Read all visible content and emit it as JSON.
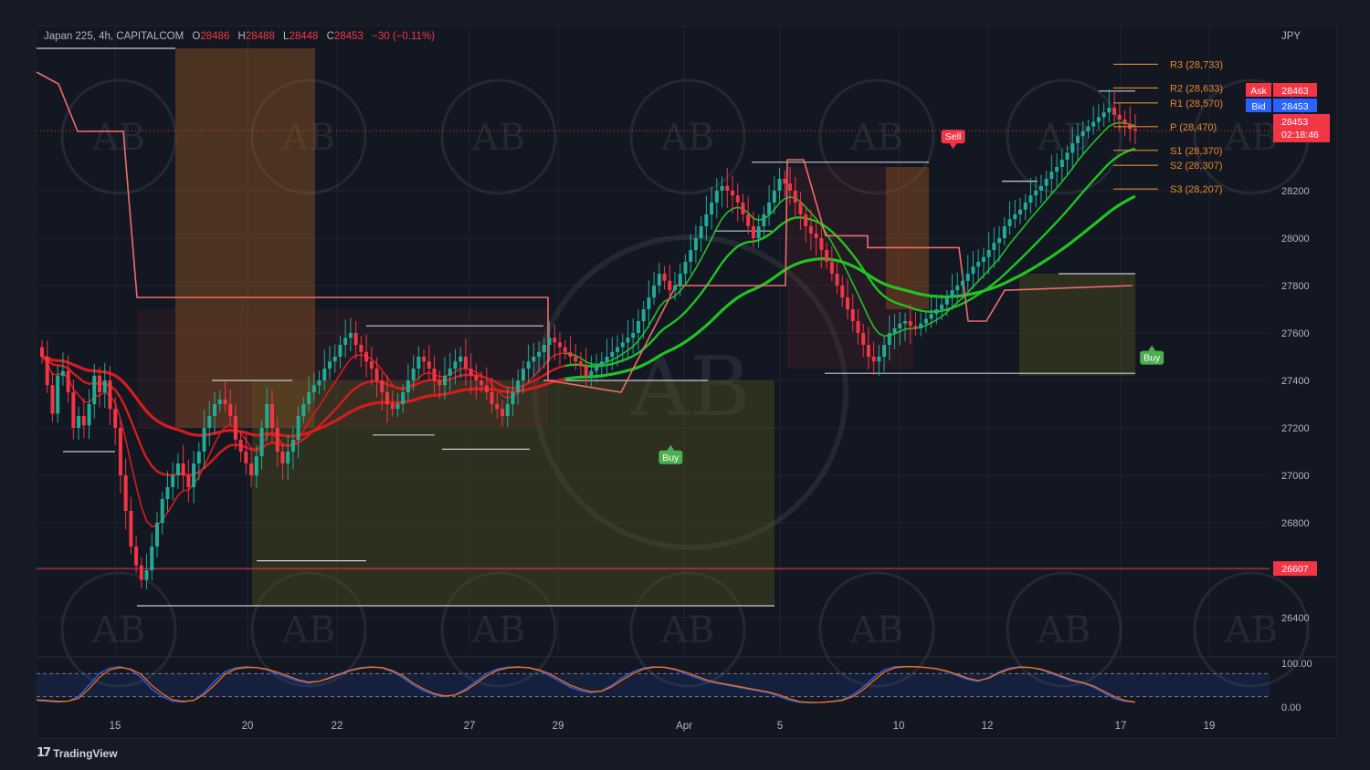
{
  "header": {
    "symbol": "Japan 225, 4h, CAPITALCOM",
    "open_label": "O",
    "open": "28486",
    "high_label": "H",
    "high": "28488",
    "low_label": "L",
    "low": "28448",
    "close_label": "C",
    "close": "28453",
    "change": "−30 (−0.11%)"
  },
  "currency": "JPY",
  "branding": {
    "logo_text": "TradingView"
  },
  "watermark_text": "AB",
  "colors": {
    "bull": "#22ab94",
    "bear": "#f23645",
    "pivot": "#e58a2a",
    "ema_green": "#21c323",
    "ema_red": "#d61c1c",
    "ask": "#f23645",
    "bid": "#2962ff"
  },
  "chart_data": {
    "type": "candlestick",
    "instrument": "Japan 225",
    "timeframe": "4h",
    "y_axis": {
      "ticks": [
        26400,
        26600,
        26800,
        27000,
        27200,
        27400,
        27600,
        27800,
        28000,
        28200
      ],
      "range": [
        26250,
        28850
      ]
    },
    "x_axis": {
      "ticks": [
        "15",
        "20",
        "22",
        "27",
        "29",
        "Apr",
        "5",
        "10",
        "12",
        "17",
        "19"
      ]
    },
    "pivots": [
      {
        "name": "R3",
        "label": "R3 (28,733)",
        "value": 28733
      },
      {
        "name": "R2",
        "label": "R2 (28,633)",
        "value": 28633
      },
      {
        "name": "R1",
        "label": "R1 (28,570)",
        "value": 28570
      },
      {
        "name": "P",
        "label": "P (28,470)",
        "value": 28470
      },
      {
        "name": "S1",
        "label": "S1 (28,370)",
        "value": 28370
      },
      {
        "name": "S2",
        "label": "S2 (28,307)",
        "value": 28307
      },
      {
        "name": "S3",
        "label": "S3 (28,207)",
        "value": 28207
      }
    ],
    "price_tags": {
      "ask_label": "Ask",
      "ask": "28463",
      "bid_label": "Bid",
      "bid": "28453",
      "last": "28453",
      "countdown": "02:18:46",
      "horizontal_level": "26607",
      "horizontal_level_value": 26607
    },
    "signals": [
      {
        "label": "Sell",
        "bar": 174,
        "price": 28380,
        "type": "sell"
      },
      {
        "label": "Buy",
        "bar": 120,
        "price": 27120,
        "type": "buy"
      },
      {
        "label": "Buy",
        "bar": 212,
        "price": 27540,
        "type": "buy"
      }
    ],
    "close_prices": [
      27500,
      27380,
      27260,
      27420,
      27440,
      27350,
      27200,
      27250,
      27210,
      27300,
      27420,
      27350,
      27400,
      27280,
      27200,
      27000,
      26850,
      26700,
      26620,
      26560,
      26600,
      26700,
      26800,
      26900,
      26950,
      27000,
      27050,
      27000,
      26950,
      27050,
      27100,
      27200,
      27250,
      27300,
      27320,
      27300,
      27250,
      27150,
      27100,
      27050,
      27000,
      27080,
      27200,
      27300,
      27200,
      27100,
      27050,
      27100,
      27150,
      27250,
      27300,
      27350,
      27380,
      27400,
      27450,
      27480,
      27500,
      27550,
      27580,
      27600,
      27550,
      27520,
      27480,
      27450,
      27400,
      27350,
      27300,
      27280,
      27300,
      27350,
      27400,
      27450,
      27500,
      27480,
      27450,
      27400,
      27380,
      27420,
      27450,
      27480,
      27500,
      27450,
      27420,
      27400,
      27380,
      27350,
      27300,
      27280,
      27250,
      27300,
      27350,
      27400,
      27450,
      27480,
      27500,
      27520,
      27550,
      27580,
      27560,
      27540,
      27520,
      27500,
      27480,
      27460,
      27420,
      27440,
      27460,
      27480,
      27500,
      27520,
      27540,
      27560,
      27580,
      27600,
      27650,
      27700,
      27750,
      27800,
      27850,
      27820,
      27780,
      27800,
      27850,
      27900,
      27950,
      28000,
      28050,
      28100,
      28150,
      28200,
      28220,
      28200,
      28180,
      28150,
      28100,
      28050,
      28000,
      28050,
      28100,
      28150,
      28200,
      28250,
      28230,
      28200,
      28150,
      28100,
      28050,
      28020,
      28000,
      27950,
      27900,
      27850,
      27800,
      27750,
      27700,
      27650,
      27600,
      27550,
      27500,
      27480,
      27500,
      27550,
      27600,
      27620,
      27640,
      27650,
      27630,
      27620,
      27640,
      27660,
      27680,
      27700,
      27720,
      27750,
      27780,
      27800,
      27820,
      27850,
      27880,
      27900,
      27920,
      27950,
      27980,
      28000,
      28050,
      28080,
      28100,
      28120,
      28150,
      28180,
      28200,
      28220,
      28250,
      28280,
      28300,
      28330,
      28360,
      28400,
      28430,
      28450,
      28470,
      28490,
      28510,
      28530,
      28550,
      28520,
      28500,
      28480,
      28460,
      28453
    ],
    "indicators": [
      {
        "name": "EMA (slow)",
        "color": "#21c323"
      },
      {
        "name": "EMA (mid)",
        "color": "#21c323"
      },
      {
        "name": "EMA (fast)",
        "color": "#21c323"
      },
      {
        "name": "Stepped stop",
        "color": "#f23645"
      }
    ],
    "oscillator": {
      "type": "stochastic",
      "ticks": [
        "100.00",
        "0.00"
      ],
      "range": [
        0,
        100
      ],
      "k": [
        10,
        8,
        6,
        8,
        20,
        50,
        80,
        95,
        98,
        90,
        70,
        40,
        20,
        8,
        6,
        10,
        30,
        60,
        85,
        95,
        98,
        96,
        90,
        80,
        70,
        60,
        55,
        60,
        70,
        80,
        90,
        96,
        98,
        95,
        85,
        70,
        50,
        35,
        25,
        20,
        25,
        40,
        60,
        80,
        92,
        97,
        98,
        95,
        88,
        75,
        60,
        45,
        35,
        30,
        35,
        50,
        70,
        85,
        95,
        98,
        96,
        90,
        80,
        70,
        60,
        55,
        50,
        45,
        40,
        35,
        30,
        20,
        10,
        5,
        4,
        5,
        8,
        12,
        25,
        45,
        70,
        90,
        98,
        99,
        98,
        96,
        92,
        85,
        75,
        65,
        60,
        70,
        85,
        95,
        98,
        96,
        90,
        80,
        70,
        60,
        55,
        45,
        30,
        15,
        8,
        5
      ],
      "d": [
        12,
        10,
        8,
        8,
        15,
        40,
        70,
        90,
        96,
        92,
        78,
        50,
        28,
        12,
        8,
        10,
        25,
        50,
        78,
        92,
        96,
        96,
        92,
        84,
        74,
        64,
        58,
        60,
        68,
        78,
        88,
        94,
        97,
        96,
        88,
        75,
        55,
        40,
        28,
        22,
        24,
        36,
        54,
        74,
        88,
        95,
        97,
        96,
        90,
        80,
        65,
        50,
        40,
        33,
        34,
        46,
        64,
        80,
        92,
        97,
        97,
        92,
        84,
        74,
        64,
        57,
        52,
        47,
        42,
        37,
        32,
        24,
        14,
        7,
        5,
        5,
        7,
        10,
        20,
        38,
        62,
        84,
        95,
        98,
        98,
        96,
        93,
        87,
        78,
        68,
        62,
        68,
        82,
        92,
        97,
        96,
        92,
        83,
        73,
        63,
        57,
        48,
        34,
        20,
        10,
        6
      ]
    }
  }
}
